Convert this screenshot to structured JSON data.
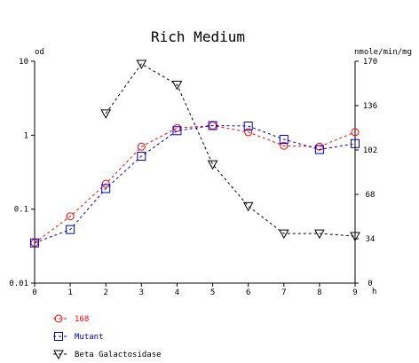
{
  "chart_data": {
    "type": "line",
    "title": "Rich Medium",
    "x": [
      0,
      1,
      2,
      3,
      4,
      5,
      6,
      7,
      8,
      9
    ],
    "x_ticks": [
      "0",
      "1",
      "2",
      "3",
      "4",
      "5",
      "6",
      "7",
      "8",
      "9"
    ],
    "xlabel": "h",
    "xlim": [
      0,
      9
    ],
    "y_left": {
      "label": "od",
      "scale": "log",
      "lim": [
        0.01,
        10
      ],
      "ticks": [
        "0.01",
        "0.1",
        "1",
        "10"
      ],
      "tick_values": [
        0.01,
        0.1,
        1,
        10
      ]
    },
    "y_right": {
      "label": "nmole/min/mg",
      "scale": "linear",
      "lim": [
        0,
        170
      ],
      "ticks": [
        "0",
        "34",
        "68",
        "102",
        "136",
        "170"
      ],
      "tick_values": [
        0,
        34,
        68,
        102,
        136,
        170
      ]
    },
    "grid": false,
    "legend_position": "bottom-left",
    "series": [
      {
        "name": "168",
        "axis": "left",
        "color": "#ff0000",
        "marker": "circle",
        "x": [
          0,
          1,
          2,
          3,
          4,
          5,
          6,
          7,
          8,
          9
        ],
        "values": [
          0.035,
          0.08,
          0.22,
          0.7,
          1.25,
          1.35,
          1.1,
          0.72,
          0.7,
          1.1
        ]
      },
      {
        "name": "Mutant",
        "axis": "left",
        "color": "#0000cc",
        "marker": "square",
        "x": [
          0,
          1,
          2,
          3,
          4,
          5,
          6,
          7,
          8,
          9
        ],
        "values": [
          0.035,
          0.053,
          0.19,
          0.52,
          1.15,
          1.35,
          1.33,
          0.88,
          0.64,
          0.77
        ]
      },
      {
        "name": "Beta Galactosidase",
        "axis": "right",
        "color": "#000000",
        "marker": "triangle-down",
        "x": [
          2,
          3,
          4,
          5,
          6,
          7,
          8,
          9
        ],
        "values": [
          130,
          168,
          152,
          91,
          59,
          38,
          38,
          36
        ]
      }
    ]
  }
}
